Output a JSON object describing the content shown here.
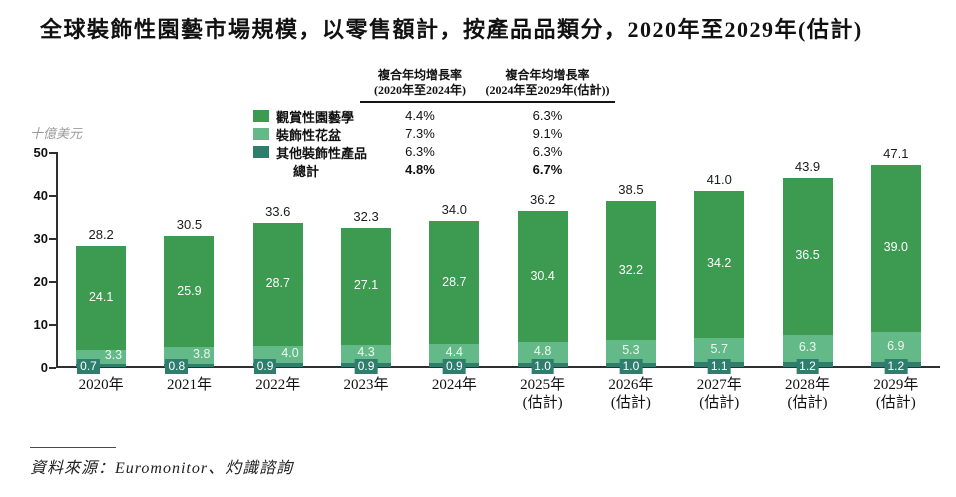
{
  "title": "全球裝飾性園藝市場規模，以零售額計，按產品品類分，2020年至2029年(估計)",
  "source": "資料來源：Euromonitor、灼識諮詢",
  "chart_data": {
    "type": "bar",
    "stacked": true,
    "title": "全球裝飾性園藝市場規模，以零售額計，按產品品類分，2020年至2029年(估計)",
    "unit_label": "十億美元",
    "ylim": [
      0,
      50
    ],
    "yticks": [
      0,
      10,
      20,
      30,
      40,
      50
    ],
    "grid": false,
    "legend_position": "top-left",
    "categories": [
      {
        "line1": "2020年",
        "line2": ""
      },
      {
        "line1": "2021年",
        "line2": ""
      },
      {
        "line1": "2022年",
        "line2": ""
      },
      {
        "line1": "2023年",
        "line2": ""
      },
      {
        "line1": "2024年",
        "line2": ""
      },
      {
        "line1": "2025年",
        "line2": "(估計)"
      },
      {
        "line1": "2026年",
        "line2": "(估計)"
      },
      {
        "line1": "2027年",
        "line2": "(估計)"
      },
      {
        "line1": "2028年",
        "line2": "(估計)"
      },
      {
        "line1": "2029年",
        "line2": "(估計)"
      }
    ],
    "series": [
      {
        "name": "觀賞性園藝學",
        "color": "#3d9b51",
        "values": [
          24.1,
          25.9,
          28.7,
          27.1,
          28.7,
          30.4,
          32.2,
          34.2,
          36.5,
          39.0
        ],
        "cagr_2020_2024": "4.4%",
        "cagr_2024_2029_est": "6.3%"
      },
      {
        "name": "裝飾性花盆",
        "color": "#63ba88",
        "values": [
          3.3,
          3.8,
          4.0,
          4.3,
          4.4,
          4.8,
          5.3,
          5.7,
          6.3,
          6.9
        ],
        "cagr_2020_2024": "7.3%",
        "cagr_2024_2029_est": "9.1%"
      },
      {
        "name": "其他裝飾性產品",
        "color": "#2e7d6d",
        "values": [
          0.7,
          0.8,
          0.9,
          0.9,
          0.9,
          1.0,
          1.0,
          1.1,
          1.2,
          1.2
        ],
        "cagr_2020_2024": "6.3%",
        "cagr_2024_2029_est": "6.3%"
      }
    ],
    "totals": [
      28.2,
      30.5,
      33.6,
      32.3,
      34.0,
      36.2,
      38.5,
      41.0,
      43.9,
      47.1
    ],
    "total_row": {
      "label": "總計",
      "cagr_2020_2024": "4.8%",
      "cagr_2024_2029_est": "6.7%"
    },
    "cagr_headers": [
      {
        "line1": "複合年均增長率",
        "line2": "(2020年至2024年)"
      },
      {
        "line1": "複合年均增長率",
        "line2": "(2024年至2029年(估計))"
      }
    ]
  }
}
